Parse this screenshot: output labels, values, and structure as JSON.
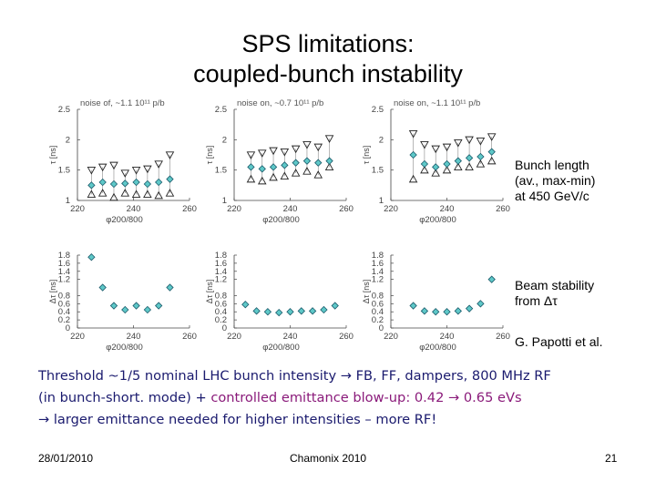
{
  "slide": {
    "title_line1": "SPS limitations:",
    "title_line2": "coupled-bunch instability",
    "label_bunch_length": [
      "Bunch length",
      "(av., max-min)",
      "at 450 GeV/c"
    ],
    "label_beam_stability": [
      "Beam stability",
      "from Δτ"
    ],
    "credit": "G. Papotti et al.",
    "text_line1": "Threshold ~1/5 nominal LHC bunch intensity → FB, FF, dampers, 800 MHz RF",
    "text_line2_a": "(in bunch-short. mode) + ",
    "text_line2_b": "controlled emittance blow-up: 0.42 → 0.65 eVs",
    "text_line3": "→ larger emittance needed for higher intensities – more RF!",
    "footer_date": "28/01/2010",
    "footer_event": "Chamonix 2010",
    "footer_page": "21"
  },
  "colors": {
    "marker_fill": "#5ec8c8",
    "marker_stroke": "#1a5a6a",
    "axis": "#444444"
  },
  "chart_data": [
    {
      "type": "scatter",
      "title": "noise of, ~1.1 10¹¹ p/b",
      "xlabel": "φ200/800",
      "ylabel": "τ [ns]",
      "xlim": [
        220,
        260
      ],
      "ylim": [
        1,
        2.5
      ],
      "xticks": [
        220,
        240,
        260
      ],
      "yticks": [
        1,
        1.5,
        2,
        2.5
      ],
      "xtick_labels": [
        "220",
        "240",
        "260"
      ],
      "ytick_labels": [
        "1",
        "1.5",
        "2",
        "2.5"
      ],
      "x": [
        225,
        229,
        233,
        237,
        241,
        245,
        249,
        253
      ],
      "mean": [
        1.25,
        1.3,
        1.27,
        1.28,
        1.3,
        1.27,
        1.3,
        1.35
      ],
      "max": [
        1.5,
        1.55,
        1.58,
        1.45,
        1.5,
        1.52,
        1.6,
        1.75
      ],
      "min": [
        1.1,
        1.12,
        1.05,
        1.12,
        1.1,
        1.1,
        1.08,
        1.12
      ]
    },
    {
      "type": "scatter",
      "title": "noise on, ~0.7 10¹¹ p/b",
      "xlabel": "φ200/800",
      "ylabel": "τ [ns]",
      "xlim": [
        220,
        260
      ],
      "ylim": [
        1,
        2.5
      ],
      "xticks": [
        220,
        240,
        260
      ],
      "yticks": [
        1,
        1.5,
        2,
        2.5
      ],
      "xtick_labels": [
        "220",
        "240",
        "260"
      ],
      "ytick_labels": [
        "1",
        "1.5",
        "2",
        "2.5"
      ],
      "x": [
        226,
        230,
        234,
        238,
        242,
        246,
        250,
        254
      ],
      "mean": [
        1.55,
        1.52,
        1.55,
        1.58,
        1.62,
        1.65,
        1.62,
        1.65
      ],
      "max": [
        1.75,
        1.78,
        1.82,
        1.8,
        1.85,
        1.92,
        1.88,
        2.02
      ],
      "min": [
        1.35,
        1.32,
        1.38,
        1.4,
        1.45,
        1.48,
        1.42,
        1.55
      ]
    },
    {
      "type": "scatter",
      "title": "noise on, ~1.1 10¹¹ p/b",
      "xlabel": "φ200/800",
      "ylabel": "τ [ns]",
      "xlim": [
        220,
        260
      ],
      "ylim": [
        1,
        2.5
      ],
      "xticks": [
        220,
        240,
        260
      ],
      "yticks": [
        1,
        1.5,
        2,
        2.5
      ],
      "xtick_labels": [
        "220",
        "240",
        "260"
      ],
      "ytick_labels": [
        "1",
        "1.5",
        "2",
        "2.5"
      ],
      "x": [
        228,
        232,
        236,
        240,
        244,
        248,
        252,
        256
      ],
      "mean": [
        1.75,
        1.6,
        1.55,
        1.6,
        1.65,
        1.7,
        1.72,
        1.8
      ],
      "max": [
        2.1,
        1.92,
        1.85,
        1.88,
        1.95,
        2.0,
        1.98,
        2.05
      ],
      "min": [
        1.35,
        1.5,
        1.45,
        1.5,
        1.55,
        1.55,
        1.6,
        1.65
      ]
    },
    {
      "type": "scatter",
      "xlabel": "φ200/800",
      "ylabel": "Δτ [ns]",
      "xlim": [
        220,
        260
      ],
      "ylim": [
        0,
        1.8
      ],
      "xticks": [
        220,
        240,
        260
      ],
      "yticks": [
        0,
        0.2,
        0.4,
        0.6,
        0.8,
        1.2,
        1.4,
        1.6,
        1.8
      ],
      "xtick_labels": [
        "220",
        "240",
        "260"
      ],
      "ytick_labels": [
        "0",
        "0.2",
        "0.4",
        "0.6",
        "0.8",
        "1.2",
        "1.4",
        "1.6",
        "1.8"
      ],
      "x": [
        225,
        229,
        233,
        237,
        241,
        245,
        249,
        253
      ],
      "values": [
        1.75,
        1.0,
        0.55,
        0.45,
        0.55,
        0.45,
        0.55,
        1.0
      ]
    },
    {
      "type": "scatter",
      "xlabel": "φ200/800",
      "ylabel": "Δτ [ns]",
      "xlim": [
        220,
        260
      ],
      "ylim": [
        0,
        1.8
      ],
      "xticks": [
        220,
        240,
        260
      ],
      "yticks": [
        0,
        0.2,
        0.4,
        0.6,
        0.8,
        1.2,
        1.4,
        1.6,
        1.8
      ],
      "xtick_labels": [
        "220",
        "240",
        "260"
      ],
      "ytick_labels": [
        "0",
        "0.2",
        "0.4",
        "0.6",
        "0.8",
        "1.2",
        "1.4",
        "1.6",
        "1.8"
      ],
      "x": [
        224,
        228,
        232,
        236,
        240,
        244,
        248,
        252,
        256
      ],
      "values": [
        0.58,
        0.42,
        0.4,
        0.38,
        0.4,
        0.42,
        0.42,
        0.45,
        0.55
      ]
    },
    {
      "type": "scatter",
      "xlabel": "φ200/800",
      "ylabel": "Δτ [ns]",
      "xlim": [
        220,
        260
      ],
      "ylim": [
        0,
        1.8
      ],
      "xticks": [
        220,
        240,
        260
      ],
      "yticks": [
        0,
        0.2,
        0.4,
        0.6,
        0.8,
        1.2,
        1.4,
        1.6,
        1.8
      ],
      "xtick_labels": [
        "220",
        "240",
        "260"
      ],
      "ytick_labels": [
        "0",
        "0.2",
        "0.4",
        "0.6",
        "0.8",
        "1.2",
        "1.4",
        "1.6",
        "1.8"
      ],
      "x": [
        228,
        232,
        236,
        240,
        244,
        248,
        252,
        256
      ],
      "values": [
        0.55,
        0.42,
        0.4,
        0.4,
        0.42,
        0.48,
        0.6,
        1.2
      ]
    }
  ]
}
